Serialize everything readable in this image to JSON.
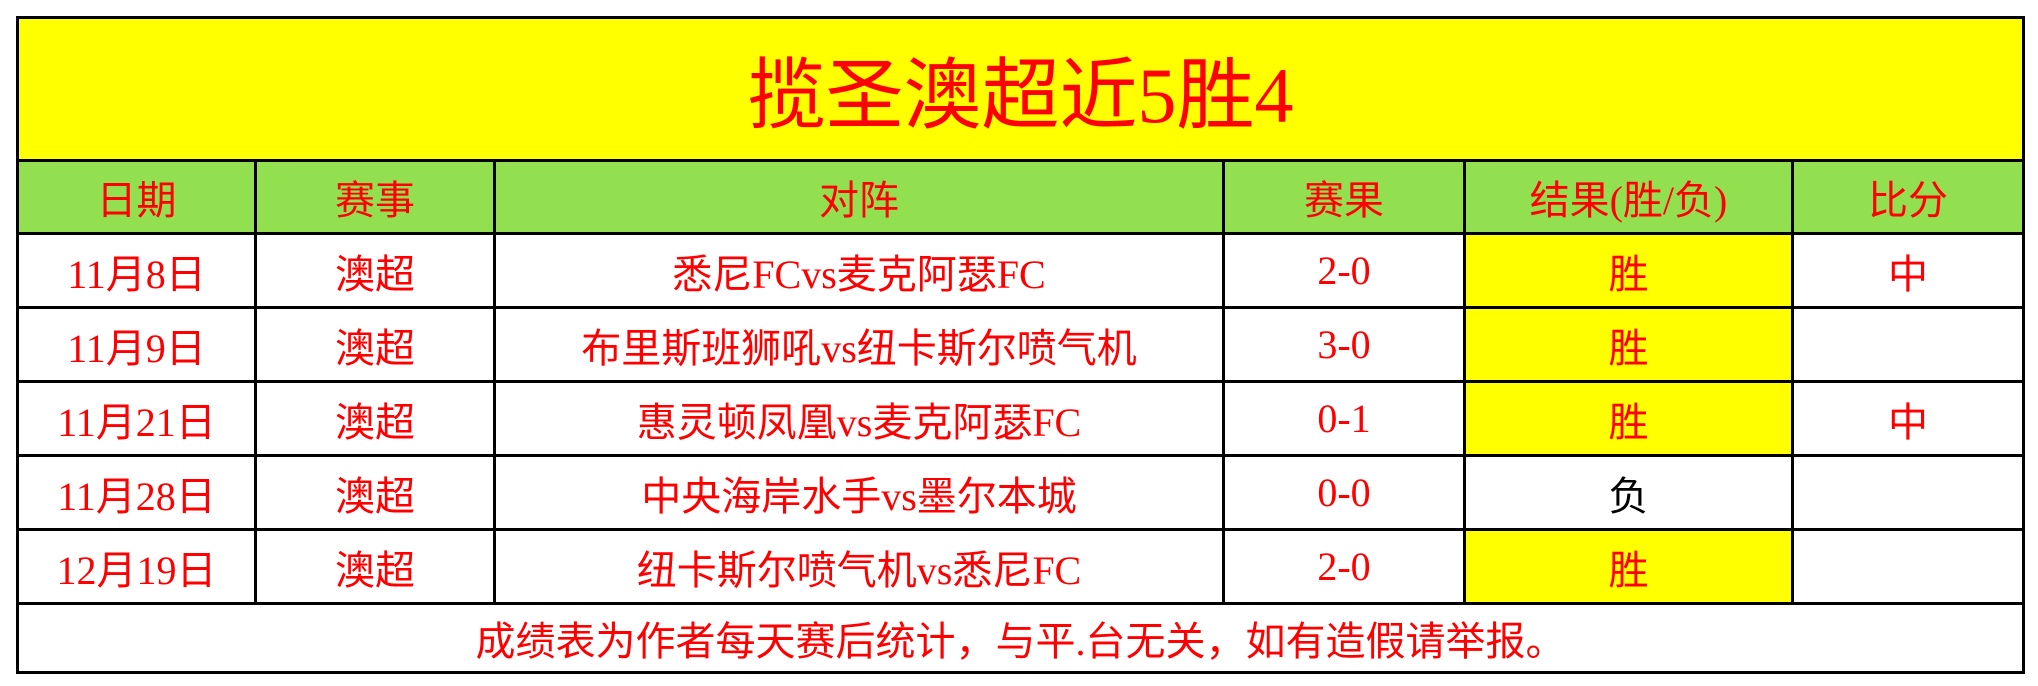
{
  "title": "揽圣澳超近5胜4",
  "headers": [
    "日期",
    "赛事",
    "对阵",
    "赛果",
    "结果(胜/负)",
    "比分"
  ],
  "rows": [
    {
      "date": "11月8日",
      "league": "澳超",
      "match": "悉尼FCvs麦克阿瑟FC",
      "score": "2-0",
      "result": "胜",
      "pick": "中"
    },
    {
      "date": "11月9日",
      "league": "澳超",
      "match": "布里斯班狮吼vs纽卡斯尔喷气机",
      "score": "3-0",
      "result": "胜",
      "pick": ""
    },
    {
      "date": "11月21日",
      "league": "澳超",
      "match": "惠灵顿凤凰vs麦克阿瑟FC",
      "score": "0-1",
      "result": "胜",
      "pick": "中"
    },
    {
      "date": "11月28日",
      "league": "澳超",
      "match": "中央海岸水手vs墨尔本城",
      "score": "0-0",
      "result": "负",
      "pick": ""
    },
    {
      "date": "12月19日",
      "league": "澳超",
      "match": "纽卡斯尔喷气机vs悉尼FC",
      "score": "2-0",
      "result": "胜",
      "pick": ""
    }
  ],
  "footer": "成绩表为作者每天赛后统计，与平.台无关，如有造假请举报。",
  "colors": {
    "title_bg": "#ffff00",
    "header_bg": "#92e04f",
    "win_bg": "#ffff00",
    "text": "#ff0000"
  }
}
